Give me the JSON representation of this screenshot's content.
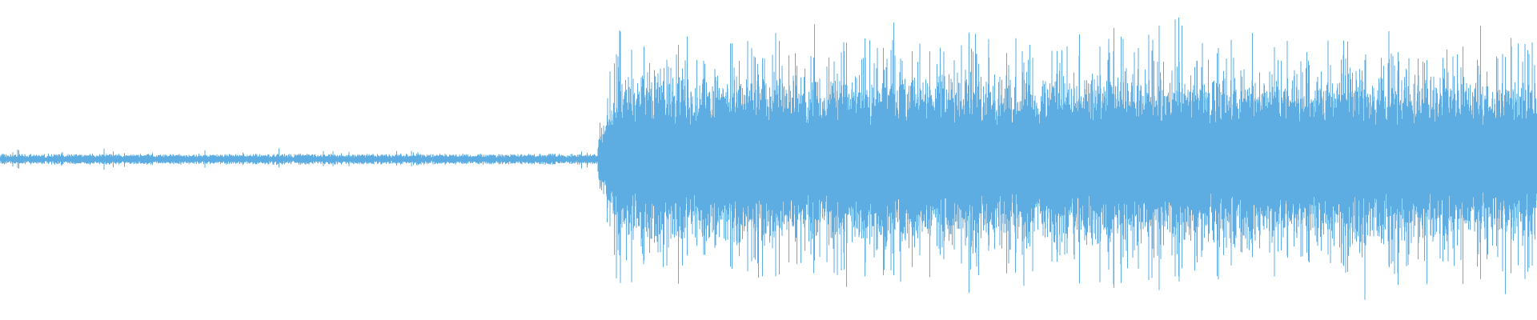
{
  "waveform": {
    "color": "#5dade2",
    "background": "#ffffff",
    "quiet_until_fraction": 0.389
  }
}
